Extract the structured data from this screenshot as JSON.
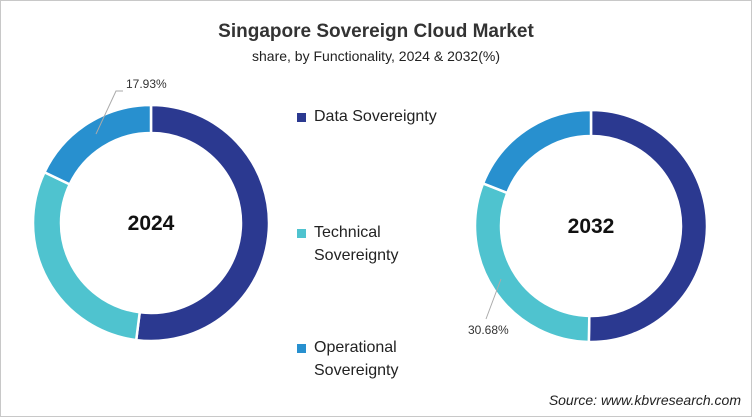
{
  "chart_data": [
    {
      "type": "donut",
      "title": "Singapore Sovereign Cloud Market",
      "subtitle": "share, by Functionality, 2024 & 2032(%)",
      "center_label": "2024",
      "categories": [
        "Data Sovereignty",
        "Technical Sovereignty",
        "Operational Sovereignty"
      ],
      "values": [
        52.0,
        30.07,
        17.93
      ],
      "data_labels": {
        "Operational Sovereignty": "17.93%"
      }
    },
    {
      "type": "donut",
      "center_label": "2032",
      "categories": [
        "Data Sovereignty",
        "Technical Sovereignty",
        "Operational Sovereignty"
      ],
      "values": [
        50.3,
        30.68,
        19.02
      ],
      "data_labels": {
        "Technical Sovereignty": "30.68%"
      }
    }
  ],
  "header": {
    "title": "Singapore Sovereign Cloud Market",
    "subtitle": "share, by Functionality, 2024 & 2032(%)"
  },
  "legend": [
    {
      "label": "Data Sovereignty",
      "color": "#2b3990"
    },
    {
      "label": "Technical\nSovereignty",
      "color": "#4fc3cf"
    },
    {
      "label": "Operational\nSovereignty",
      "color": "#2890cf"
    }
  ],
  "colors": [
    "#2b3990",
    "#4fc3cf",
    "#2890cf"
  ],
  "source": "Source: www.kbvresearch.com"
}
